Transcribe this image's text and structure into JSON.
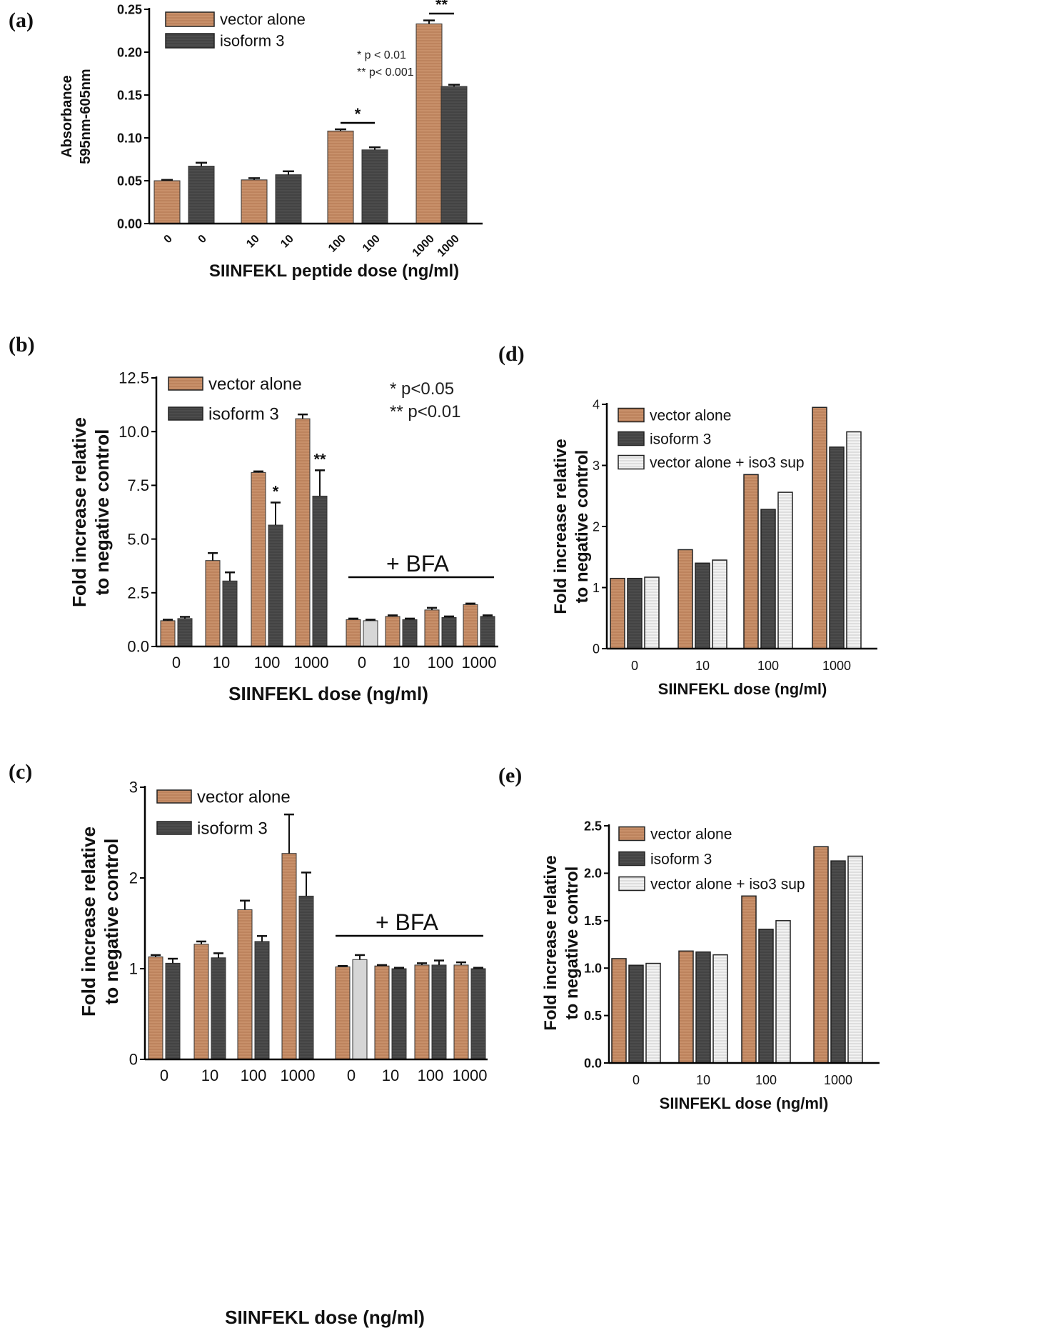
{
  "figure": {
    "colors": {
      "vector": "#c8906a",
      "isoform": "#4c4c4c",
      "sup": "#f2f2f2",
      "bfa_light": "#d6d6d6",
      "axis": "#000000"
    }
  },
  "chart_data": [
    {
      "panel": "(a)",
      "type": "bar",
      "ylabel_lines": [
        "Absorbance",
        "595nm-605nm"
      ],
      "xlabel": "SIINFEKL peptide dose (ng/ml)",
      "ylim": [
        0,
        0.25
      ],
      "yticks": [
        "0.00",
        "0.05",
        "0.10",
        "0.15",
        "0.20",
        "0.25"
      ],
      "legend": [
        "vector alone",
        "isoform 3"
      ],
      "bars": [
        {
          "label": "0",
          "series": "vector alone",
          "value": 0.05,
          "error": 0.001
        },
        {
          "label": "0",
          "series": "isoform 3",
          "value": 0.067,
          "error": 0.004
        },
        {
          "label": "10",
          "series": "vector alone",
          "value": 0.051,
          "error": 0.002
        },
        {
          "label": "10",
          "series": "isoform 3",
          "value": 0.057,
          "error": 0.004
        },
        {
          "label": "100",
          "series": "vector alone",
          "value": 0.108,
          "error": 0.002
        },
        {
          "label": "100",
          "series": "isoform 3",
          "value": 0.086,
          "error": 0.003
        },
        {
          "label": "1000",
          "series": "vector alone",
          "value": 0.233,
          "error": 0.004
        },
        {
          "label": "1000",
          "series": "isoform 3",
          "value": 0.16,
          "error": 0.002
        }
      ],
      "significance": [
        {
          "text": "*",
          "bars": [
            4,
            5
          ]
        },
        {
          "text": "**",
          "bars": [
            6,
            7
          ]
        }
      ],
      "notes": [
        "* p < 0.01",
        "** p< 0.001"
      ]
    },
    {
      "panel": "(b)",
      "type": "bar",
      "ylabel_lines": [
        "Fold increase relative",
        "to negative control"
      ],
      "xlabel": "SIINFEKL dose (ng/ml)",
      "ylim": [
        0,
        12.5
      ],
      "yticks": [
        "0.0",
        "2.5",
        "5.0",
        "7.5",
        "10.0",
        "12.5"
      ],
      "legend": [
        "vector alone",
        "isoform 3"
      ],
      "categories": [
        "0",
        "10",
        "100",
        "1000",
        "0",
        "10",
        "100",
        "1000"
      ],
      "series": [
        {
          "name": "vector alone",
          "values": [
            1.2,
            4.0,
            8.1,
            10.6,
            1.25,
            1.4,
            1.7,
            1.95
          ],
          "errors": [
            0.05,
            0.35,
            0.05,
            0.2,
            0.05,
            0.05,
            0.1,
            0.05
          ]
        },
        {
          "name": "isoform 3",
          "values": [
            1.3,
            3.05,
            5.65,
            7.0,
            1.2,
            1.25,
            1.35,
            1.4
          ],
          "errors": [
            0.08,
            0.4,
            1.05,
            1.2,
            0.05,
            0.05,
            0.05,
            0.05
          ]
        }
      ],
      "significance": [
        {
          "text": "*",
          "category_index": 2
        },
        {
          "text": "**",
          "category_index": 3
        }
      ],
      "notes": [
        "*  p<0.05",
        "** p<0.01"
      ],
      "bfa_label": "+ BFA"
    },
    {
      "panel": "(c)",
      "type": "bar",
      "ylabel_lines": [
        "Fold increase relative",
        "to negative control"
      ],
      "xlabel": "SIINFEKL dose (ng/ml)",
      "ylim": [
        0,
        3
      ],
      "yticks": [
        "0",
        "1",
        "2",
        "3"
      ],
      "legend": [
        "vector alone",
        "isoform 3"
      ],
      "categories": [
        "0",
        "10",
        "100",
        "1000",
        "0",
        "10",
        "100",
        "1000"
      ],
      "series": [
        {
          "name": "vector alone",
          "values": [
            1.13,
            1.27,
            1.65,
            2.27,
            1.02,
            1.03,
            1.04,
            1.04
          ],
          "errors": [
            0.02,
            0.03,
            0.1,
            0.43,
            0.01,
            0.01,
            0.02,
            0.03
          ]
        },
        {
          "name": "isoform 3",
          "values": [
            1.06,
            1.12,
            1.3,
            1.8,
            1.1,
            1.0,
            1.04,
            1.0
          ],
          "errors": [
            0.05,
            0.05,
            0.06,
            0.26,
            0.05,
            0.01,
            0.05,
            0.01
          ]
        }
      ],
      "bfa_label": "+ BFA"
    },
    {
      "panel": "(d)",
      "type": "bar",
      "ylabel_lines": [
        "Fold increase relative",
        "to negative control"
      ],
      "xlabel": "SIINFEKL dose (ng/ml)",
      "ylim": [
        0,
        4
      ],
      "yticks": [
        "0",
        "1",
        "2",
        "3",
        "4"
      ],
      "legend": [
        "vector alone",
        "isoform 3",
        "vector alone + iso3 sup"
      ],
      "categories": [
        "0",
        "10",
        "100",
        "1000"
      ],
      "series": [
        {
          "name": "vector alone",
          "values": [
            1.15,
            1.62,
            2.85,
            3.95
          ]
        },
        {
          "name": "isoform 3",
          "values": [
            1.15,
            1.4,
            2.28,
            3.3
          ]
        },
        {
          "name": "vector alone + iso3 sup",
          "values": [
            1.17,
            1.45,
            2.56,
            3.55
          ]
        }
      ]
    },
    {
      "panel": "(e)",
      "type": "bar",
      "ylabel_lines": [
        "Fold increase relative",
        "to negative control"
      ],
      "xlabel": "SIINFEKL dose (ng/ml)",
      "ylim": [
        0,
        2.5
      ],
      "yticks": [
        "0.0",
        "0.5",
        "1.0",
        "1.5",
        "2.0",
        "2.5"
      ],
      "legend": [
        "vector alone",
        "isoform 3",
        "vector alone + iso3 sup"
      ],
      "categories": [
        "0",
        "10",
        "100",
        "1000"
      ],
      "series": [
        {
          "name": "vector alone",
          "values": [
            1.1,
            1.18,
            1.76,
            2.28
          ]
        },
        {
          "name": "isoform 3",
          "values": [
            1.03,
            1.17,
            1.41,
            2.13
          ]
        },
        {
          "name": "vector alone + iso3 sup",
          "values": [
            1.05,
            1.14,
            1.5,
            2.18
          ]
        }
      ]
    }
  ]
}
